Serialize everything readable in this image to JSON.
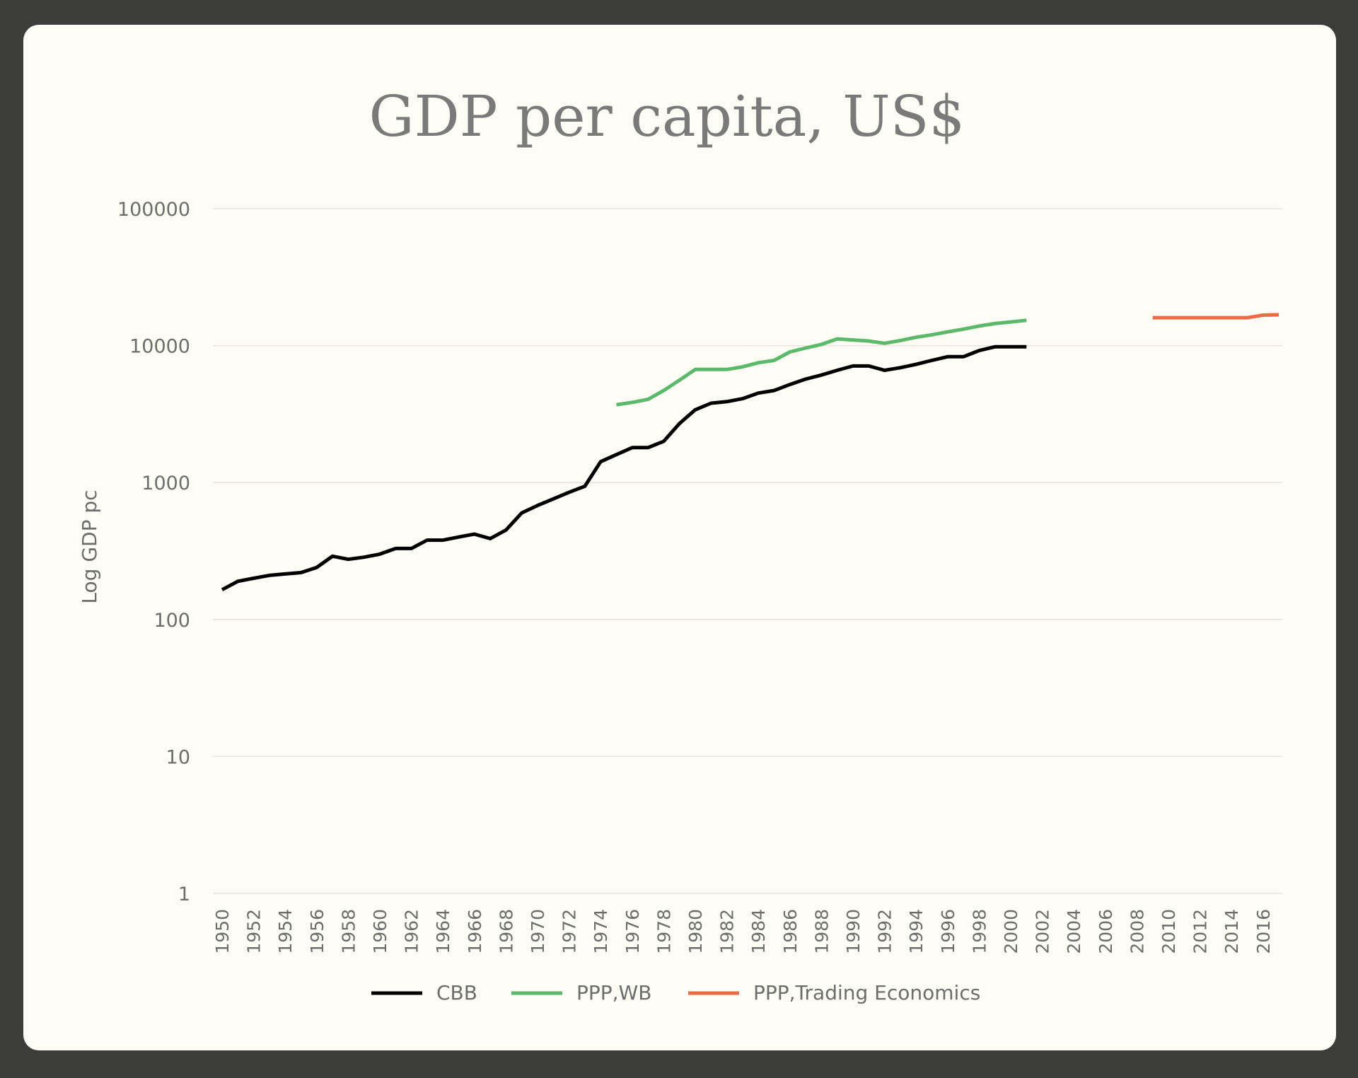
{
  "chart_data": {
    "type": "line",
    "title": "GDP per capita, US$",
    "ylabel": "Log GDP pc",
    "xlabel": "",
    "yscale": "log",
    "ylim": [
      1,
      100000
    ],
    "ytick_labels": [
      "1",
      "10",
      "100",
      "1000",
      "10000",
      "100000"
    ],
    "xlim": [
      1950,
      2017
    ],
    "xtick_labels": [
      "1950",
      "1952",
      "1954",
      "1956",
      "1958",
      "1960",
      "1962",
      "1964",
      "1966",
      "1968",
      "1970",
      "1972",
      "1974",
      "1976",
      "1978",
      "1980",
      "1982",
      "1984",
      "1986",
      "1988",
      "1990",
      "1992",
      "1994",
      "1996",
      "1998",
      "2000",
      "2002",
      "2004",
      "2006",
      "2008",
      "2010",
      "2012",
      "2014",
      "2016"
    ],
    "grid": true,
    "legend_position": "bottom",
    "series": [
      {
        "name": "CBB",
        "color": "#000000",
        "x": [
          1950,
          1951,
          1952,
          1953,
          1954,
          1955,
          1956,
          1957,
          1958,
          1959,
          1960,
          1961,
          1962,
          1963,
          1964,
          1965,
          1966,
          1967,
          1968,
          1969,
          1970,
          1971,
          1972,
          1973,
          1974,
          1975,
          1976,
          1977,
          1978,
          1979,
          1980,
          1981,
          1982,
          1983,
          1984,
          1985,
          1986,
          1987,
          1988,
          1989,
          1990,
          1991,
          1992,
          1993,
          1994,
          1995,
          1996,
          1997,
          1998,
          1999,
          2000,
          2001
        ],
        "values": [
          165,
          190,
          200,
          210,
          215,
          220,
          240,
          290,
          275,
          285,
          300,
          330,
          330,
          380,
          380,
          400,
          420,
          390,
          450,
          600,
          680,
          760,
          850,
          940,
          1420,
          1600,
          1800,
          1800,
          2000,
          2700,
          3400,
          3800,
          3900,
          4100,
          4500,
          4700,
          5200,
          5700,
          6100,
          6600,
          7100,
          7100,
          6600,
          6900,
          7300,
          7800,
          8300,
          8300,
          9200,
          9800,
          9800,
          9800
        ]
      },
      {
        "name": "PPP,WB",
        "color": "#5cb86b",
        "x": [
          1975,
          1976,
          1977,
          1978,
          1979,
          1980,
          1981,
          1982,
          1983,
          1984,
          1985,
          1986,
          1987,
          1988,
          1989,
          1990,
          1991,
          1992,
          1993,
          1994,
          1995,
          1996,
          1997,
          1998,
          1999,
          2000,
          2001
        ],
        "values": [
          3700,
          3850,
          4050,
          4700,
          5600,
          6700,
          6700,
          6700,
          7000,
          7500,
          7800,
          9000,
          9600,
          10200,
          11200,
          11000,
          10800,
          10400,
          10900,
          11500,
          12000,
          12600,
          13200,
          13900,
          14500,
          14900,
          15300
        ]
      },
      {
        "name": "PPP,Trading Economics",
        "color": "#ee6a44",
        "x": [
          2009,
          2010,
          2011,
          2012,
          2013,
          2014,
          2015,
          2016,
          2017
        ],
        "values": [
          16000,
          16000,
          16000,
          16000,
          16000,
          16000,
          16000,
          16700,
          16800
        ]
      }
    ]
  }
}
